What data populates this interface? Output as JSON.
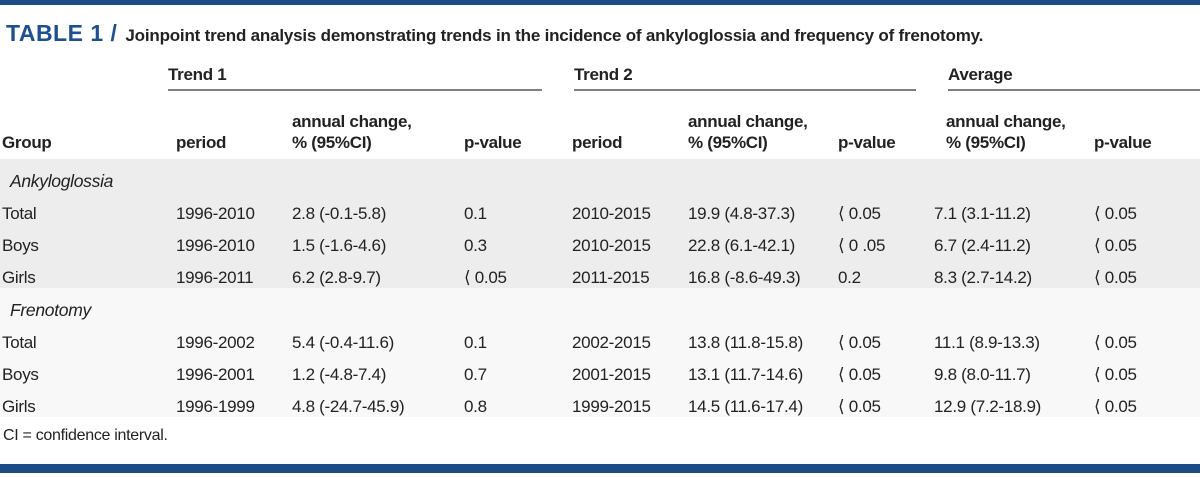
{
  "accent_color": "#1b4c86",
  "title": {
    "label": "TABLE 1 /",
    "caption": "Joinpoint trend analysis demonstrating trends in the incidence of ankyloglossia and frequency of frenotomy."
  },
  "table": {
    "group_headers": [
      "Trend 1",
      "Trend 2",
      "Average"
    ],
    "col_headers": {
      "group": "Group",
      "period": "period",
      "annual_change_line1": "annual change,",
      "annual_change_line2": "% (95%CI)",
      "p_value": "p-value"
    },
    "sections": [
      {
        "name": "Ankyloglossia",
        "rows": [
          {
            "group": "Total",
            "t1_period": "1996-2010",
            "t1_change": "2.8 (-0.1-5.8)",
            "t1_p": "0.1",
            "t2_period": "2010-2015",
            "t2_change": "19.9 (4.8-37.3)",
            "t2_p": "⟨ 0.05",
            "avg_change": "7.1 (3.1-11.2)",
            "avg_p": "⟨ 0.05"
          },
          {
            "group": "Boys",
            "t1_period": "1996-2010",
            "t1_change": "1.5 (-1.6-4.6)",
            "t1_p": "0.3",
            "t2_period": "2010-2015",
            "t2_change": "22.8 (6.1-42.1)",
            "t2_p": "⟨ 0 .05",
            "avg_change": "6.7 (2.4-11.2)",
            "avg_p": "⟨ 0.05"
          },
          {
            "group": "Girls",
            "t1_period": "1996-2011",
            "t1_change": "6.2 (2.8-9.7)",
            "t1_p": "⟨ 0.05",
            "t2_period": "2011-2015",
            "t2_change": "16.8 (-8.6-49.3)",
            "t2_p": "0.2",
            "avg_change": "8.3 (2.7-14.2)",
            "avg_p": "⟨ 0.05"
          }
        ]
      },
      {
        "name": "Frenotomy",
        "rows": [
          {
            "group": "Total",
            "t1_period": "1996-2002",
            "t1_change": "5.4 (-0.4-11.6)",
            "t1_p": "0.1",
            "t2_period": "2002-2015",
            "t2_change": "13.8 (11.8-15.8)",
            "t2_p": "⟨ 0.05",
            "avg_change": "11.1 (8.9-13.3)",
            "avg_p": "⟨ 0.05"
          },
          {
            "group": "Boys",
            "t1_period": "1996-2001",
            "t1_change": "1.2 (-4.8-7.4)",
            "t1_p": "0.7",
            "t2_period": "2001-2015",
            "t2_change": "13.1 (11.7-14.6)",
            "t2_p": "⟨ 0.05",
            "avg_change": "9.8 (8.0-11.7)",
            "avg_p": "⟨ 0.05"
          },
          {
            "group": "Girls",
            "t1_period": "1996-1999",
            "t1_change": "4.8 (-24.7-45.9)",
            "t1_p": "0.8",
            "t2_period": "1999-2015",
            "t2_change": "14.5 (11.6-17.4)",
            "t2_p": "⟨ 0.05",
            "avg_change": "12.9 (7.2-18.9)",
            "avg_p": "⟨ 0.05"
          }
        ]
      }
    ],
    "footnote": "CI = confidence interval."
  }
}
